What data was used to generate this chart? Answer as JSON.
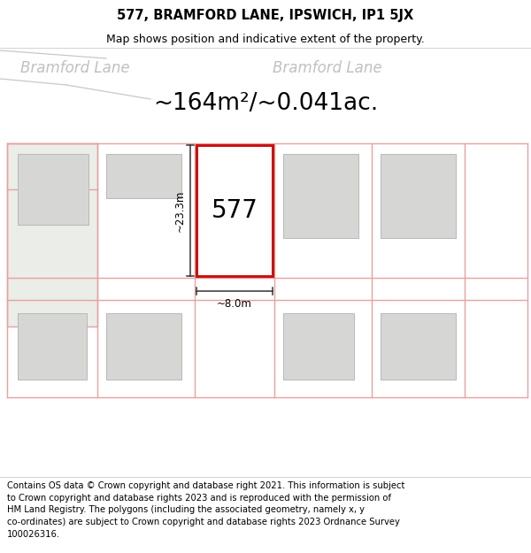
{
  "title": "577, BRAMFORD LANE, IPSWICH, IP1 5JX",
  "subtitle": "Map shows position and indicative extent of the property.",
  "area_text": "~164m²/~0.041ac.",
  "label_577": "577",
  "dim_vertical": "~23.3m",
  "dim_horizontal": "~8.0m",
  "road_label_left": "Bramford Lane",
  "road_label_right": "Bramford Lane",
  "copyright_text": "Contains OS data © Crown copyright and database right 2021. This information is subject\nto Crown copyright and database rights 2023 and is reproduced with the permission of\nHM Land Registry. The polygons (including the associated geometry, namely x, y\nco-ordinates) are subject to Crown copyright and database rights 2023 Ordnance Survey\n100026316.",
  "map_bg": "#f7f6f2",
  "bnd_color": "#e8a0a0",
  "property_color": "#cc1111",
  "building_face": "#d6d6d4",
  "building_edge": "#b8b8b8",
  "green_face": "#eaede8",
  "road_line_color": "#c8c8c8",
  "dim_color": "#333333",
  "title_fontsize": 10.5,
  "subtitle_fontsize": 9,
  "area_fontsize": 19,
  "label_fontsize": 20,
  "dim_fontsize": 8.5,
  "road_label_fontsize": 12,
  "copyright_fontsize": 7.2
}
